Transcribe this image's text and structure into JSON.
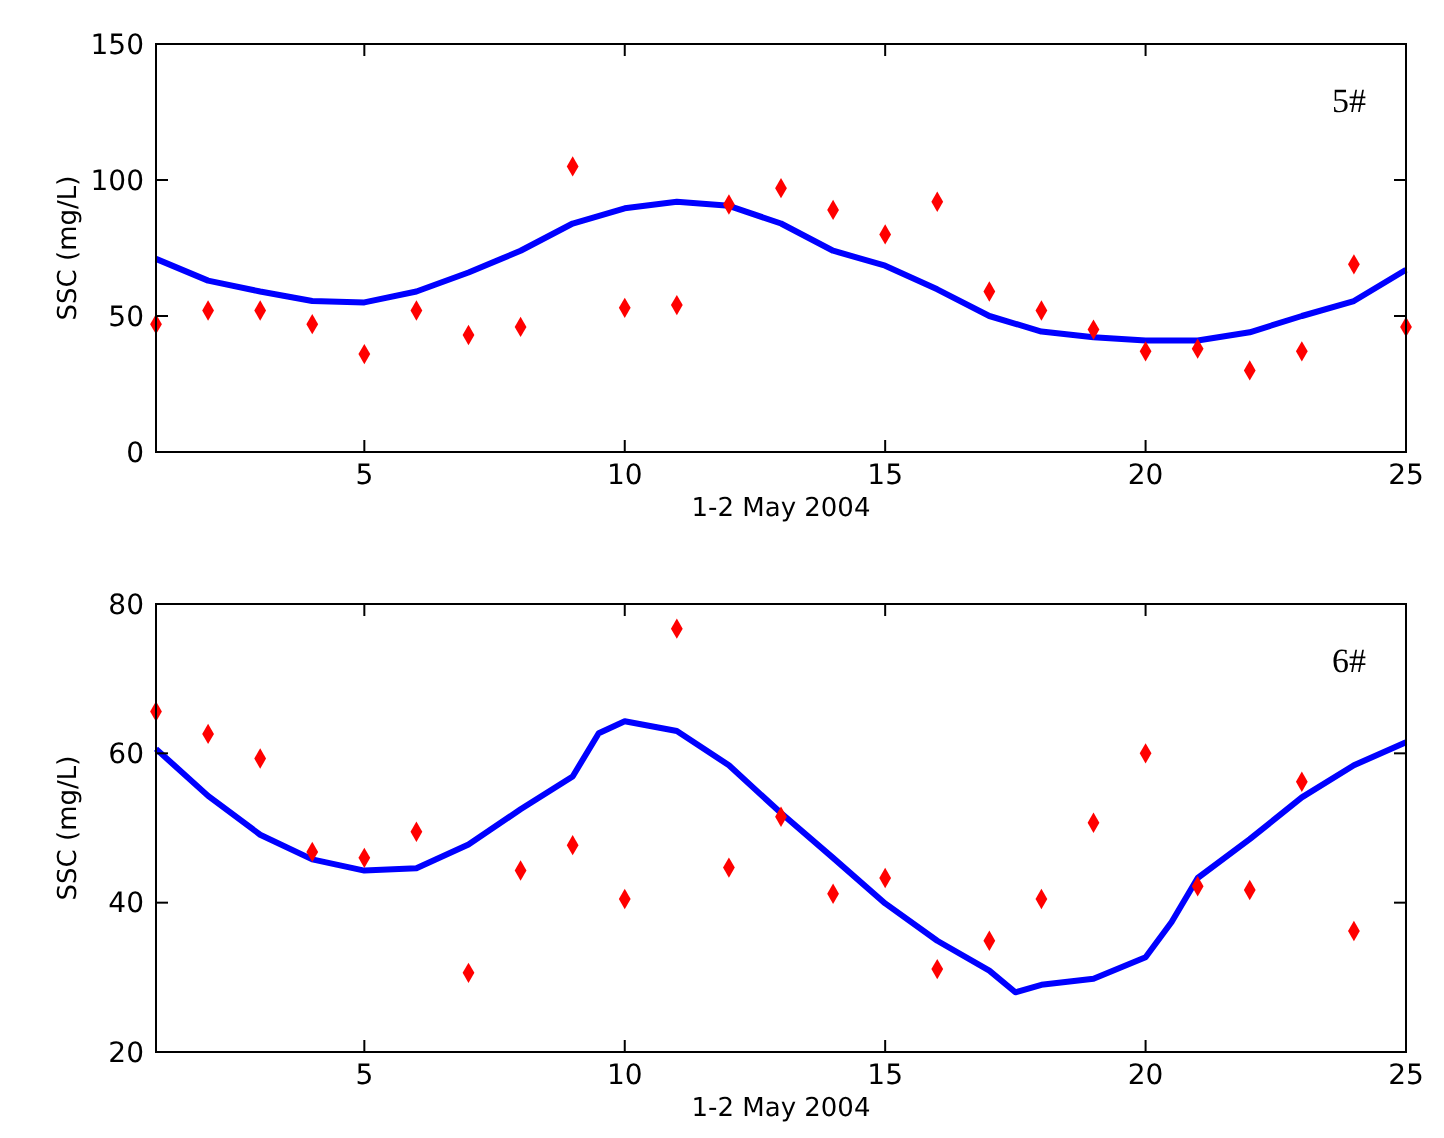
{
  "chart_data": [
    {
      "type": "scatter",
      "xlabel": "1-2 May 2004",
      "ylabel": "SSC (mg/L)",
      "annotations": [
        "5#"
      ],
      "xlim": [
        1,
        25
      ],
      "ylim": [
        0,
        150
      ],
      "xticks": [
        5,
        10,
        15,
        20,
        25
      ],
      "yticks": [
        0,
        50,
        100,
        150
      ],
      "grid": false,
      "series": [
        {
          "type": "line",
          "color": "#0000ff",
          "line_style": "solid",
          "marker": "none",
          "x": [
            1,
            2,
            3,
            4,
            5,
            6,
            7,
            8,
            9,
            10,
            11,
            12,
            13,
            14,
            15,
            16,
            17,
            18,
            19,
            20,
            21,
            22,
            23,
            24,
            25
          ],
          "values": [
            71,
            63,
            59,
            55.5,
            55,
            59,
            66,
            74,
            84,
            89.6,
            92,
            90.5,
            84,
            74,
            68.5,
            59.8,
            50,
            44.3,
            42.2,
            41,
            41,
            44,
            50,
            55.5,
            67
          ]
        },
        {
          "type": "scatter",
          "color": "#ff0000",
          "marker": "diamond",
          "x": [
            1,
            2,
            3,
            4,
            5,
            6,
            7,
            8,
            9,
            10,
            11,
            12,
            13,
            14,
            15,
            16,
            17,
            18,
            19,
            20,
            21,
            22,
            23,
            24,
            25
          ],
          "values": [
            47,
            52,
            52,
            47,
            36,
            52,
            43,
            46,
            105,
            53,
            54,
            91,
            97,
            89,
            80,
            92,
            59,
            52,
            45,
            37,
            38,
            30,
            37,
            69,
            46
          ]
        }
      ]
    },
    {
      "type": "scatter",
      "xlabel": "1-2 May 2004",
      "ylabel": "SSC (mg/L)",
      "annotations": [
        "6#"
      ],
      "xlim": [
        1,
        25
      ],
      "ylim": [
        20,
        80
      ],
      "xticks": [
        5,
        10,
        15,
        20,
        25
      ],
      "yticks": [
        20,
        40,
        60,
        80
      ],
      "grid": false,
      "series": [
        {
          "type": "line",
          "color": "#0000ff",
          "line_style": "solid",
          "marker": "none",
          "x": [
            1,
            2,
            3,
            4,
            5,
            6,
            7,
            8,
            9,
            9.5,
            10,
            11,
            12,
            13,
            14,
            15,
            16,
            17,
            17.5,
            18,
            19,
            20,
            20.5,
            21,
            22,
            23,
            24,
            25
          ],
          "values": [
            60.6,
            54.3,
            49.1,
            45.8,
            44.3,
            44.6,
            47.8,
            52.5,
            56.9,
            62.7,
            64.3,
            63,
            58.4,
            52,
            46,
            39.9,
            34.9,
            30.9,
            28,
            29,
            29.8,
            32.7,
            37.4,
            43.3,
            48.5,
            54.1,
            58.4,
            61.5
          ]
        },
        {
          "type": "scatter",
          "color": "#ff0000",
          "marker": "diamond",
          "x": [
            1,
            2,
            3,
            4,
            5,
            6,
            7,
            8,
            9,
            10,
            11,
            12,
            13,
            14,
            15,
            16,
            17,
            18,
            19,
            20,
            21,
            22,
            23,
            24
          ],
          "values": [
            65.6,
            62.6,
            59.3,
            46.8,
            46,
            49.5,
            30.6,
            44.3,
            47.7,
            40.5,
            76.7,
            44.7,
            51.5,
            41.2,
            43.3,
            31.1,
            34.9,
            40.5,
            50.7,
            60,
            42.2,
            41.7,
            56.2,
            36.2
          ]
        }
      ]
    }
  ]
}
